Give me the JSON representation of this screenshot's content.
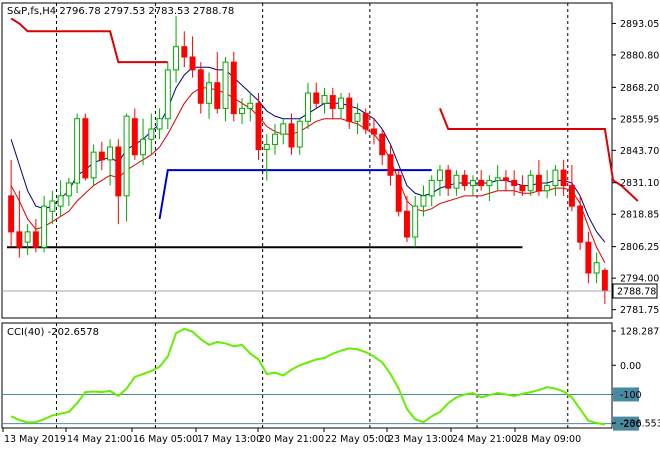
{
  "main_header": "S&P,fs,H4  2796.78 2797.53 2783.53 2788.78",
  "indicator_header": "CCI(40) -202.6578",
  "current_price_label": "2788.78",
  "colors": {
    "bull": "#00aa00",
    "bear": "#ff0000",
    "ma_fast": "#000080",
    "ma_slow": "#dd0000",
    "stop_line": "#dd0000",
    "blue_level": "#0000cc",
    "black_level": "#000000",
    "cci": "#66ee00",
    "cci_level": "#4a8aa0"
  },
  "chart_data": [
    {
      "type": "candlestick",
      "title": "S&P,fs,H4",
      "ylim": [
        2778.5,
        2901
      ],
      "y_ticks": [
        "2893.05",
        "2880.80",
        "2868.20",
        "2855.95",
        "2843.70",
        "2831.10",
        "2818.85",
        "2806.25",
        "2794.00",
        "2781.75"
      ],
      "x_ticks": [
        "13 May 2019",
        "14 May 21:00",
        "16 May 05:00",
        "17 May 13:00",
        "20 May 21:00",
        "22 May 05:00",
        "23 May 13:00",
        "24 May 21:00",
        "28 May 09:00"
      ],
      "candles": [
        [
          2826,
          2840,
          2806,
          2812
        ],
        [
          2812,
          2828,
          2802,
          2806
        ],
        [
          2808,
          2815,
          2803,
          2812
        ],
        [
          2812,
          2817,
          2804,
          2806
        ],
        [
          2806,
          2826,
          2804,
          2822
        ],
        [
          2820,
          2828,
          2815,
          2824
        ],
        [
          2822,
          2832,
          2818,
          2826
        ],
        [
          2826,
          2833,
          2822,
          2831
        ],
        [
          2831,
          2858,
          2827,
          2856
        ],
        [
          2856,
          2858,
          2832,
          2833
        ],
        [
          2833,
          2846,
          2830,
          2843
        ],
        [
          2843,
          2847,
          2836,
          2840
        ],
        [
          2840,
          2848,
          2830,
          2845
        ],
        [
          2845,
          2848,
          2815,
          2826
        ],
        [
          2826,
          2858,
          2816,
          2857
        ],
        [
          2856,
          2860,
          2840,
          2842
        ],
        [
          2842,
          2856,
          2838,
          2848
        ],
        [
          2848,
          2858,
          2842,
          2852
        ],
        [
          2852,
          2860,
          2848,
          2856
        ],
        [
          2856,
          2878,
          2852,
          2875
        ],
        [
          2875,
          2896,
          2870,
          2884
        ],
        [
          2884,
          2890,
          2876,
          2880
        ],
        [
          2880,
          2888,
          2872,
          2875
        ],
        [
          2875,
          2878,
          2858,
          2862
        ],
        [
          2862,
          2874,
          2856,
          2870
        ],
        [
          2870,
          2882,
          2858,
          2860
        ],
        [
          2860,
          2880,
          2855,
          2878
        ],
        [
          2878,
          2882,
          2855,
          2858
        ],
        [
          2858,
          2864,
          2854,
          2860
        ],
        [
          2860,
          2866,
          2855,
          2862
        ],
        [
          2862,
          2866,
          2840,
          2844
        ],
        [
          2844,
          2850,
          2832,
          2846
        ],
        [
          2846,
          2854,
          2842,
          2850
        ],
        [
          2850,
          2856,
          2846,
          2854
        ],
        [
          2854,
          2858,
          2842,
          2845
        ],
        [
          2845,
          2856,
          2842,
          2855
        ],
        [
          2855,
          2870,
          2852,
          2866
        ],
        [
          2866,
          2870,
          2860,
          2862
        ],
        [
          2862,
          2868,
          2858,
          2865
        ],
        [
          2865,
          2868,
          2856,
          2860
        ],
        [
          2860,
          2866,
          2856,
          2864
        ],
        [
          2864,
          2866,
          2852,
          2855
        ],
        [
          2855,
          2862,
          2850,
          2858
        ],
        [
          2858,
          2860,
          2850,
          2852
        ],
        [
          2852,
          2856,
          2846,
          2850
        ],
        [
          2850,
          2852,
          2838,
          2842
        ],
        [
          2842,
          2846,
          2830,
          2834
        ],
        [
          2834,
          2836,
          2818,
          2820
        ],
        [
          2820,
          2826,
          2808,
          2810
        ],
        [
          2810,
          2826,
          2806,
          2822
        ],
        [
          2822,
          2830,
          2818,
          2826
        ],
        [
          2826,
          2834,
          2822,
          2832
        ],
        [
          2832,
          2838,
          2826,
          2836
        ],
        [
          2836,
          2838,
          2826,
          2829
        ],
        [
          2829,
          2836,
          2826,
          2834
        ],
        [
          2834,
          2836,
          2828,
          2830
        ],
        [
          2830,
          2834,
          2826,
          2832
        ],
        [
          2832,
          2836,
          2828,
          2830
        ],
        [
          2830,
          2834,
          2824,
          2832
        ],
        [
          2832,
          2838,
          2828,
          2833
        ],
        [
          2833,
          2836,
          2828,
          2832
        ],
        [
          2832,
          2836,
          2826,
          2830
        ],
        [
          2830,
          2834,
          2826,
          2828
        ],
        [
          2828,
          2836,
          2826,
          2834
        ],
        [
          2834,
          2840,
          2826,
          2828
        ],
        [
          2828,
          2836,
          2825,
          2830
        ],
        [
          2830,
          2838,
          2826,
          2836
        ],
        [
          2836,
          2840,
          2826,
          2830
        ],
        [
          2830,
          2838,
          2820,
          2822
        ],
        [
          2822,
          2826,
          2805,
          2808
        ],
        [
          2808,
          2812,
          2792,
          2796
        ],
        [
          2796,
          2804,
          2792,
          2800
        ],
        [
          2797,
          2798,
          2784,
          2789
        ]
      ],
      "ma_fast": [
        2848,
        2838,
        2828,
        2822,
        2821,
        2822,
        2825,
        2828,
        2834,
        2836,
        2839,
        2840,
        2841,
        2839,
        2844,
        2846,
        2848,
        2851,
        2854,
        2860,
        2868,
        2873,
        2876,
        2876,
        2876,
        2875,
        2875,
        2872,
        2869,
        2866,
        2863,
        2859,
        2857,
        2856,
        2856,
        2856,
        2858,
        2860,
        2862,
        2862,
        2862,
        2861,
        2860,
        2858,
        2856,
        2852,
        2846,
        2838,
        2830,
        2827,
        2826,
        2827,
        2829,
        2830,
        2831,
        2831,
        2831,
        2831,
        2831,
        2832,
        2832,
        2831,
        2830,
        2830,
        2831,
        2831,
        2832,
        2832,
        2831,
        2826,
        2818,
        2812,
        2808
      ],
      "ma_slow": [
        2830,
        2824,
        2817,
        2813,
        2814,
        2816,
        2818,
        2820,
        2824,
        2827,
        2830,
        2832,
        2834,
        2833,
        2836,
        2838,
        2840,
        2842,
        2845,
        2850,
        2856,
        2862,
        2866,
        2868,
        2868,
        2867,
        2866,
        2864,
        2862,
        2860,
        2857,
        2853,
        2851,
        2850,
        2850,
        2851,
        2853,
        2855,
        2856,
        2856,
        2856,
        2855,
        2854,
        2852,
        2850,
        2846,
        2840,
        2832,
        2824,
        2821,
        2820,
        2821,
        2823,
        2824,
        2825,
        2826,
        2826,
        2826,
        2827,
        2828,
        2828,
        2828,
        2827,
        2827,
        2828,
        2828,
        2829,
        2829,
        2828,
        2823,
        2814,
        2806,
        2800
      ],
      "red_step_line": [
        [
          0,
          2895
        ],
        [
          1,
          2893
        ],
        [
          2,
          2890
        ],
        [
          12,
          2890
        ],
        [
          13,
          2878
        ],
        [
          19,
          2878
        ],
        null,
        [
          52,
          2860
        ],
        [
          53,
          2852
        ],
        [
          72,
          2852
        ],
        [
          73,
          2832
        ],
        [
          74,
          2830
        ],
        [
          76,
          2824
        ]
      ],
      "blue_level": {
        "value": 2836,
        "from_bar": 20,
        "to_bar": 51,
        "start_y": 2817
      },
      "black_level": {
        "value": 2806,
        "from_bar": 0,
        "to_bar": 62
      }
    },
    {
      "type": "line",
      "title": "CCI(40) -202.6578",
      "ylim": [
        -215,
        145
      ],
      "y_ticks": [
        "128.2871",
        "0.00",
        "-100",
        "-200",
        "-236.5534"
      ],
      "levels": [
        -100,
        -200
      ],
      "values": [
        -175,
        -188,
        -196,
        -195,
        -185,
        -172,
        -166,
        -160,
        -130,
        -92,
        -90,
        -92,
        -88,
        -105,
        -80,
        -40,
        -30,
        -20,
        -5,
        30,
        110,
        125,
        115,
        90,
        70,
        80,
        75,
        65,
        70,
        40,
        20,
        -30,
        -25,
        -35,
        -15,
        0,
        10,
        20,
        25,
        40,
        50,
        58,
        55,
        45,
        30,
        10,
        -30,
        -80,
        -150,
        -185,
        -195,
        -175,
        -160,
        -130,
        -110,
        -100,
        -95,
        -110,
        -102,
        -95,
        -100,
        -105,
        -98,
        -92,
        -85,
        -75,
        -80,
        -90,
        -110,
        -150,
        -190,
        -198,
        -203
      ]
    }
  ]
}
